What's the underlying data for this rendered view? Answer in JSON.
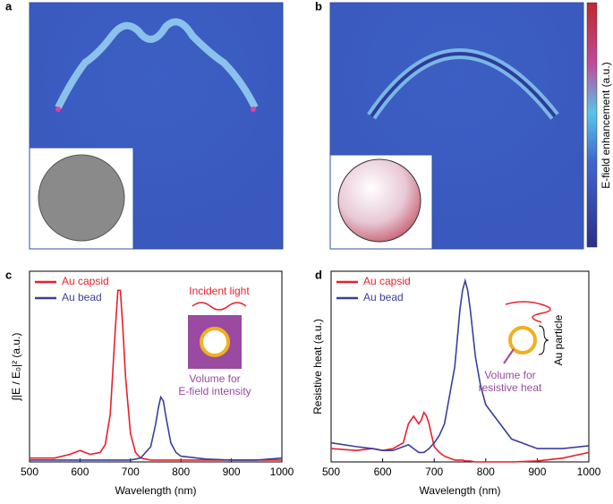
{
  "panels": [
    {
      "label": "a"
    },
    {
      "label": "b"
    }
  ],
  "colorbar_label": "E-field enhancement (a.u.)",
  "chart_data": [
    {
      "type": "line",
      "panel": "c",
      "xlabel": "Wavelength (nm)",
      "ylabel": "∫|E / E₀|² (a.u.)",
      "x": [
        500,
        550,
        580,
        600,
        620,
        640,
        650,
        660,
        670,
        675,
        680,
        685,
        690,
        700,
        710,
        720,
        740,
        750,
        755,
        760,
        765,
        770,
        780,
        790,
        800,
        850,
        900,
        950,
        1000
      ],
      "xlim": [
        500,
        1000
      ],
      "xticks": [
        500,
        600,
        700,
        800,
        900,
        1000
      ],
      "ylim": [
        0,
        1
      ],
      "series": [
        {
          "name": "Au capsid",
          "color": "#e8202a",
          "values": [
            0.02,
            0.02,
            0.04,
            0.06,
            0.04,
            0.05,
            0.09,
            0.25,
            0.7,
            0.9,
            0.9,
            0.7,
            0.45,
            0.15,
            0.05,
            0.02,
            0.01,
            0.01,
            0.01,
            0.01,
            0.01,
            0.01,
            0.01,
            0.01,
            0.01,
            0.01,
            0.01,
            0.01,
            0.01
          ]
        },
        {
          "name": "Au bead",
          "color": "#3a3f99",
          "values": [
            0.01,
            0.01,
            0.01,
            0.01,
            0.01,
            0.01,
            0.01,
            0.01,
            0.01,
            0.01,
            0.01,
            0.01,
            0.01,
            0.01,
            0.015,
            0.02,
            0.08,
            0.2,
            0.28,
            0.34,
            0.32,
            0.24,
            0.1,
            0.05,
            0.03,
            0.015,
            0.01,
            0.01,
            0.02
          ]
        }
      ],
      "annotations": [
        "Incident light",
        "Volume for",
        "E-field intensity"
      ]
    },
    {
      "type": "line",
      "panel": "d",
      "xlabel": "Wavelength (nm)",
      "ylabel": "Resistive heat (a.u.)",
      "x": [
        500,
        550,
        580,
        600,
        620,
        640,
        650,
        660,
        670,
        675,
        680,
        685,
        690,
        700,
        710,
        720,
        740,
        750,
        755,
        760,
        765,
        770,
        780,
        790,
        800,
        850,
        900,
        950,
        1000
      ],
      "xlim": [
        500,
        1000
      ],
      "xticks": [
        500,
        600,
        700,
        800,
        900,
        1000
      ],
      "ylim": [
        0,
        1
      ],
      "series": [
        {
          "name": "Au capsid",
          "color": "#e8202a",
          "values": [
            0.07,
            0.06,
            0.07,
            0.06,
            0.07,
            0.1,
            0.2,
            0.24,
            0.2,
            0.22,
            0.26,
            0.24,
            0.2,
            0.08,
            0.05,
            0.03,
            0.01,
            0.01,
            0.01,
            0.005,
            0.005,
            0.005,
            0.0,
            0.0,
            0.0,
            0.0,
            0.005,
            0.02,
            0.05
          ]
        },
        {
          "name": "Au bead",
          "color": "#3a3f99",
          "values": [
            0.1,
            0.08,
            0.07,
            0.06,
            0.06,
            0.08,
            0.09,
            0.07,
            0.05,
            0.05,
            0.05,
            0.06,
            0.07,
            0.1,
            0.14,
            0.2,
            0.5,
            0.8,
            0.9,
            0.95,
            0.9,
            0.8,
            0.55,
            0.4,
            0.3,
            0.12,
            0.07,
            0.07,
            0.085
          ]
        }
      ],
      "annotations": [
        "Au particle",
        "Volume for",
        "resistive heat"
      ]
    }
  ]
}
